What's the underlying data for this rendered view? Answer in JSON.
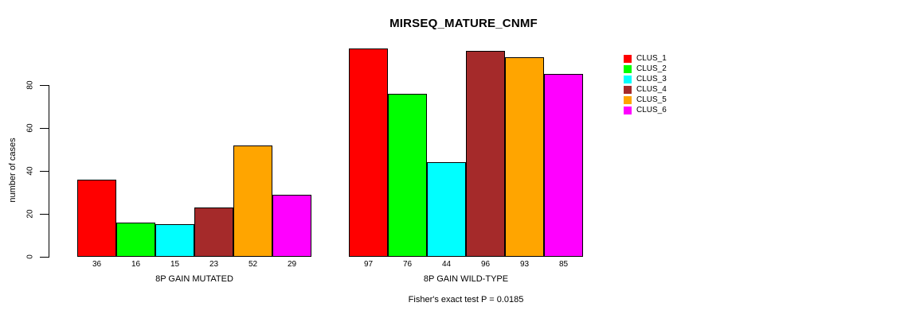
{
  "chart_data": {
    "type": "bar",
    "title": "MIRSEQ_MATURE_CNMF",
    "ylabel": "number of cases",
    "categories": [
      "8P GAIN MUTATED",
      "8P GAIN WILD-TYPE"
    ],
    "series": [
      {
        "name": "CLUS_1",
        "color": "#FF0000",
        "values": [
          36,
          97
        ]
      },
      {
        "name": "CLUS_2",
        "color": "#00FF00",
        "values": [
          16,
          76
        ]
      },
      {
        "name": "CLUS_3",
        "color": "#00FFFF",
        "values": [
          15,
          44
        ]
      },
      {
        "name": "CLUS_4",
        "color": "#A52A2A",
        "values": [
          23,
          96
        ]
      },
      {
        "name": "CLUS_5",
        "color": "#FFA500",
        "values": [
          52,
          93
        ]
      },
      {
        "name": "CLUS_6",
        "color": "#FF00FF",
        "values": [
          29,
          85
        ]
      }
    ],
    "bar_value_labels": true,
    "yticks": [
      0,
      20,
      40,
      60,
      80
    ],
    "ylim": [
      0,
      100
    ],
    "grid": false,
    "legend_position": "right",
    "footnote": "Fisher's exact test P = 0.0185"
  }
}
